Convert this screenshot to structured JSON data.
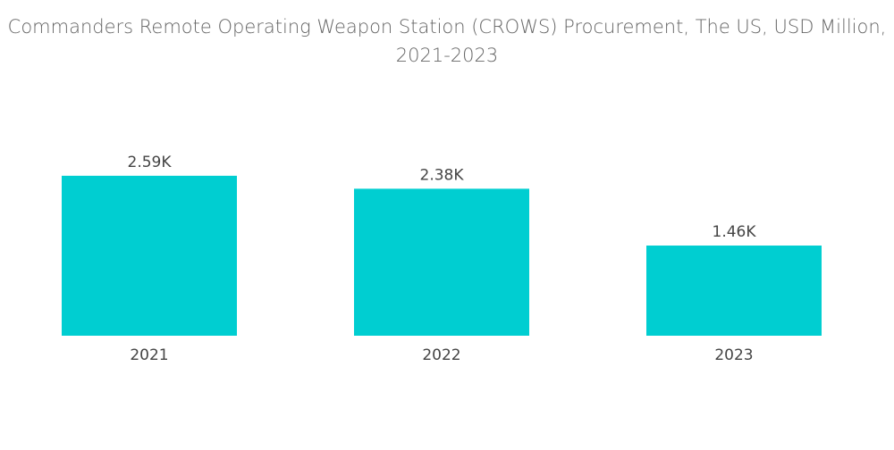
{
  "chart_data": {
    "type": "bar",
    "title": "Commanders Remote Operating Weapon Station (CROWS) Procurement, The US, USD Million, 2021-2023",
    "categories": [
      "2021",
      "2022",
      "2023"
    ],
    "values": [
      2590,
      2380,
      1460
    ],
    "data_labels": [
      "2.59K",
      "2.38K",
      "1.46K"
    ],
    "xlabel": "",
    "ylabel": "",
    "ylim": [
      0,
      3600
    ],
    "grid": false,
    "legend": "none",
    "bar_color": "#00CED1"
  }
}
